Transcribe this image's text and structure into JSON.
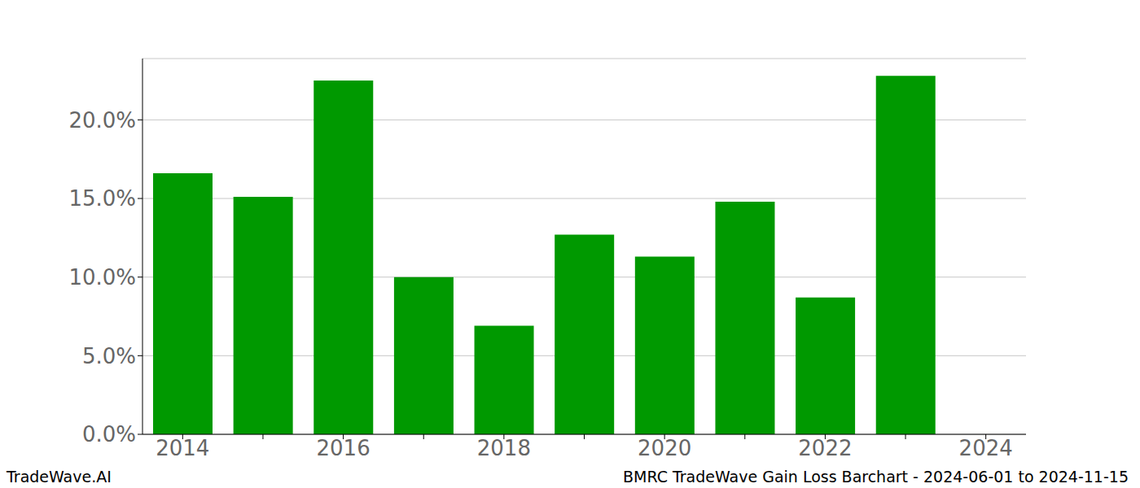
{
  "chart_data": {
    "type": "bar",
    "title": "BMRC TradeWave Gain Loss Barchart - 2024-06-01 to 2024-11-15",
    "annotations": [
      "TradeWave.AI"
    ],
    "categories": [
      "2014",
      null,
      "2016",
      null,
      "2018",
      null,
      "2020",
      null,
      "2022",
      null,
      "2024"
    ],
    "values": [
      16.6,
      15.1,
      22.5,
      10.0,
      6.9,
      12.7,
      11.3,
      14.8,
      8.7,
      22.8,
      null
    ],
    "color": "#009900",
    "ylim": [
      0,
      23.9
    ],
    "yticks": [
      {
        "value": 0,
        "label": "0.0%"
      },
      {
        "value": 5,
        "label": "5.0%"
      },
      {
        "value": 10,
        "label": "10.0%"
      },
      {
        "value": 15,
        "label": "15.0%"
      },
      {
        "value": 20,
        "label": "20.0%"
      }
    ],
    "grid": true
  }
}
